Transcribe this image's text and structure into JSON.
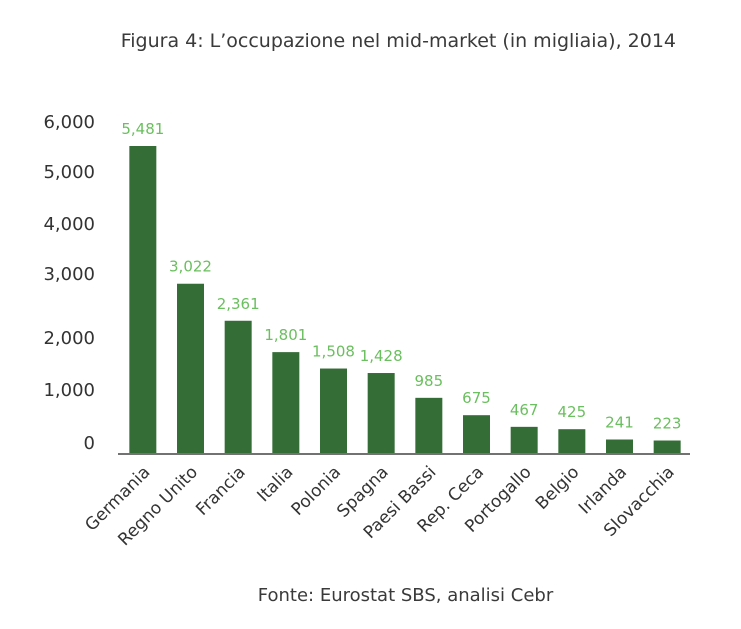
{
  "title": "Figura 4: L’occupazione nel mid-market (in migliaia), 2014",
  "source": "Fonte: Eurostat SBS, analisi Cebr",
  "colors": {
    "bar": "#356d37",
    "data_label": "#6abf5e",
    "axis": "#444444"
  },
  "chart_data": {
    "type": "bar",
    "title": "Figura 4: L’occupazione nel mid-market (in migliaia), 2014",
    "xlabel": "",
    "ylabel": "",
    "categories": [
      "Germania",
      "Regno Unito",
      "Francia",
      "Italia",
      "Polonia",
      "Spagna",
      "Paesi Bassi",
      "Rep. Ceca",
      "Portogallo",
      "Belgio",
      "Irlanda",
      "Slovacchia"
    ],
    "values": [
      5481,
      3022,
      2361,
      1801,
      1508,
      1428,
      985,
      675,
      467,
      425,
      241,
      223
    ],
    "value_labels": [
      "5,481",
      "3,022",
      "2,361",
      "1,801",
      "1,508",
      "1,428",
      "985",
      "675",
      "467",
      "425",
      "241",
      "223"
    ],
    "ytick_labels": [
      "0",
      "1,000",
      "2,000",
      "3,000",
      "4,000",
      "5,000",
      "6,000"
    ],
    "ylim": [
      0,
      6000
    ],
    "grid": false,
    "legend": "none"
  }
}
